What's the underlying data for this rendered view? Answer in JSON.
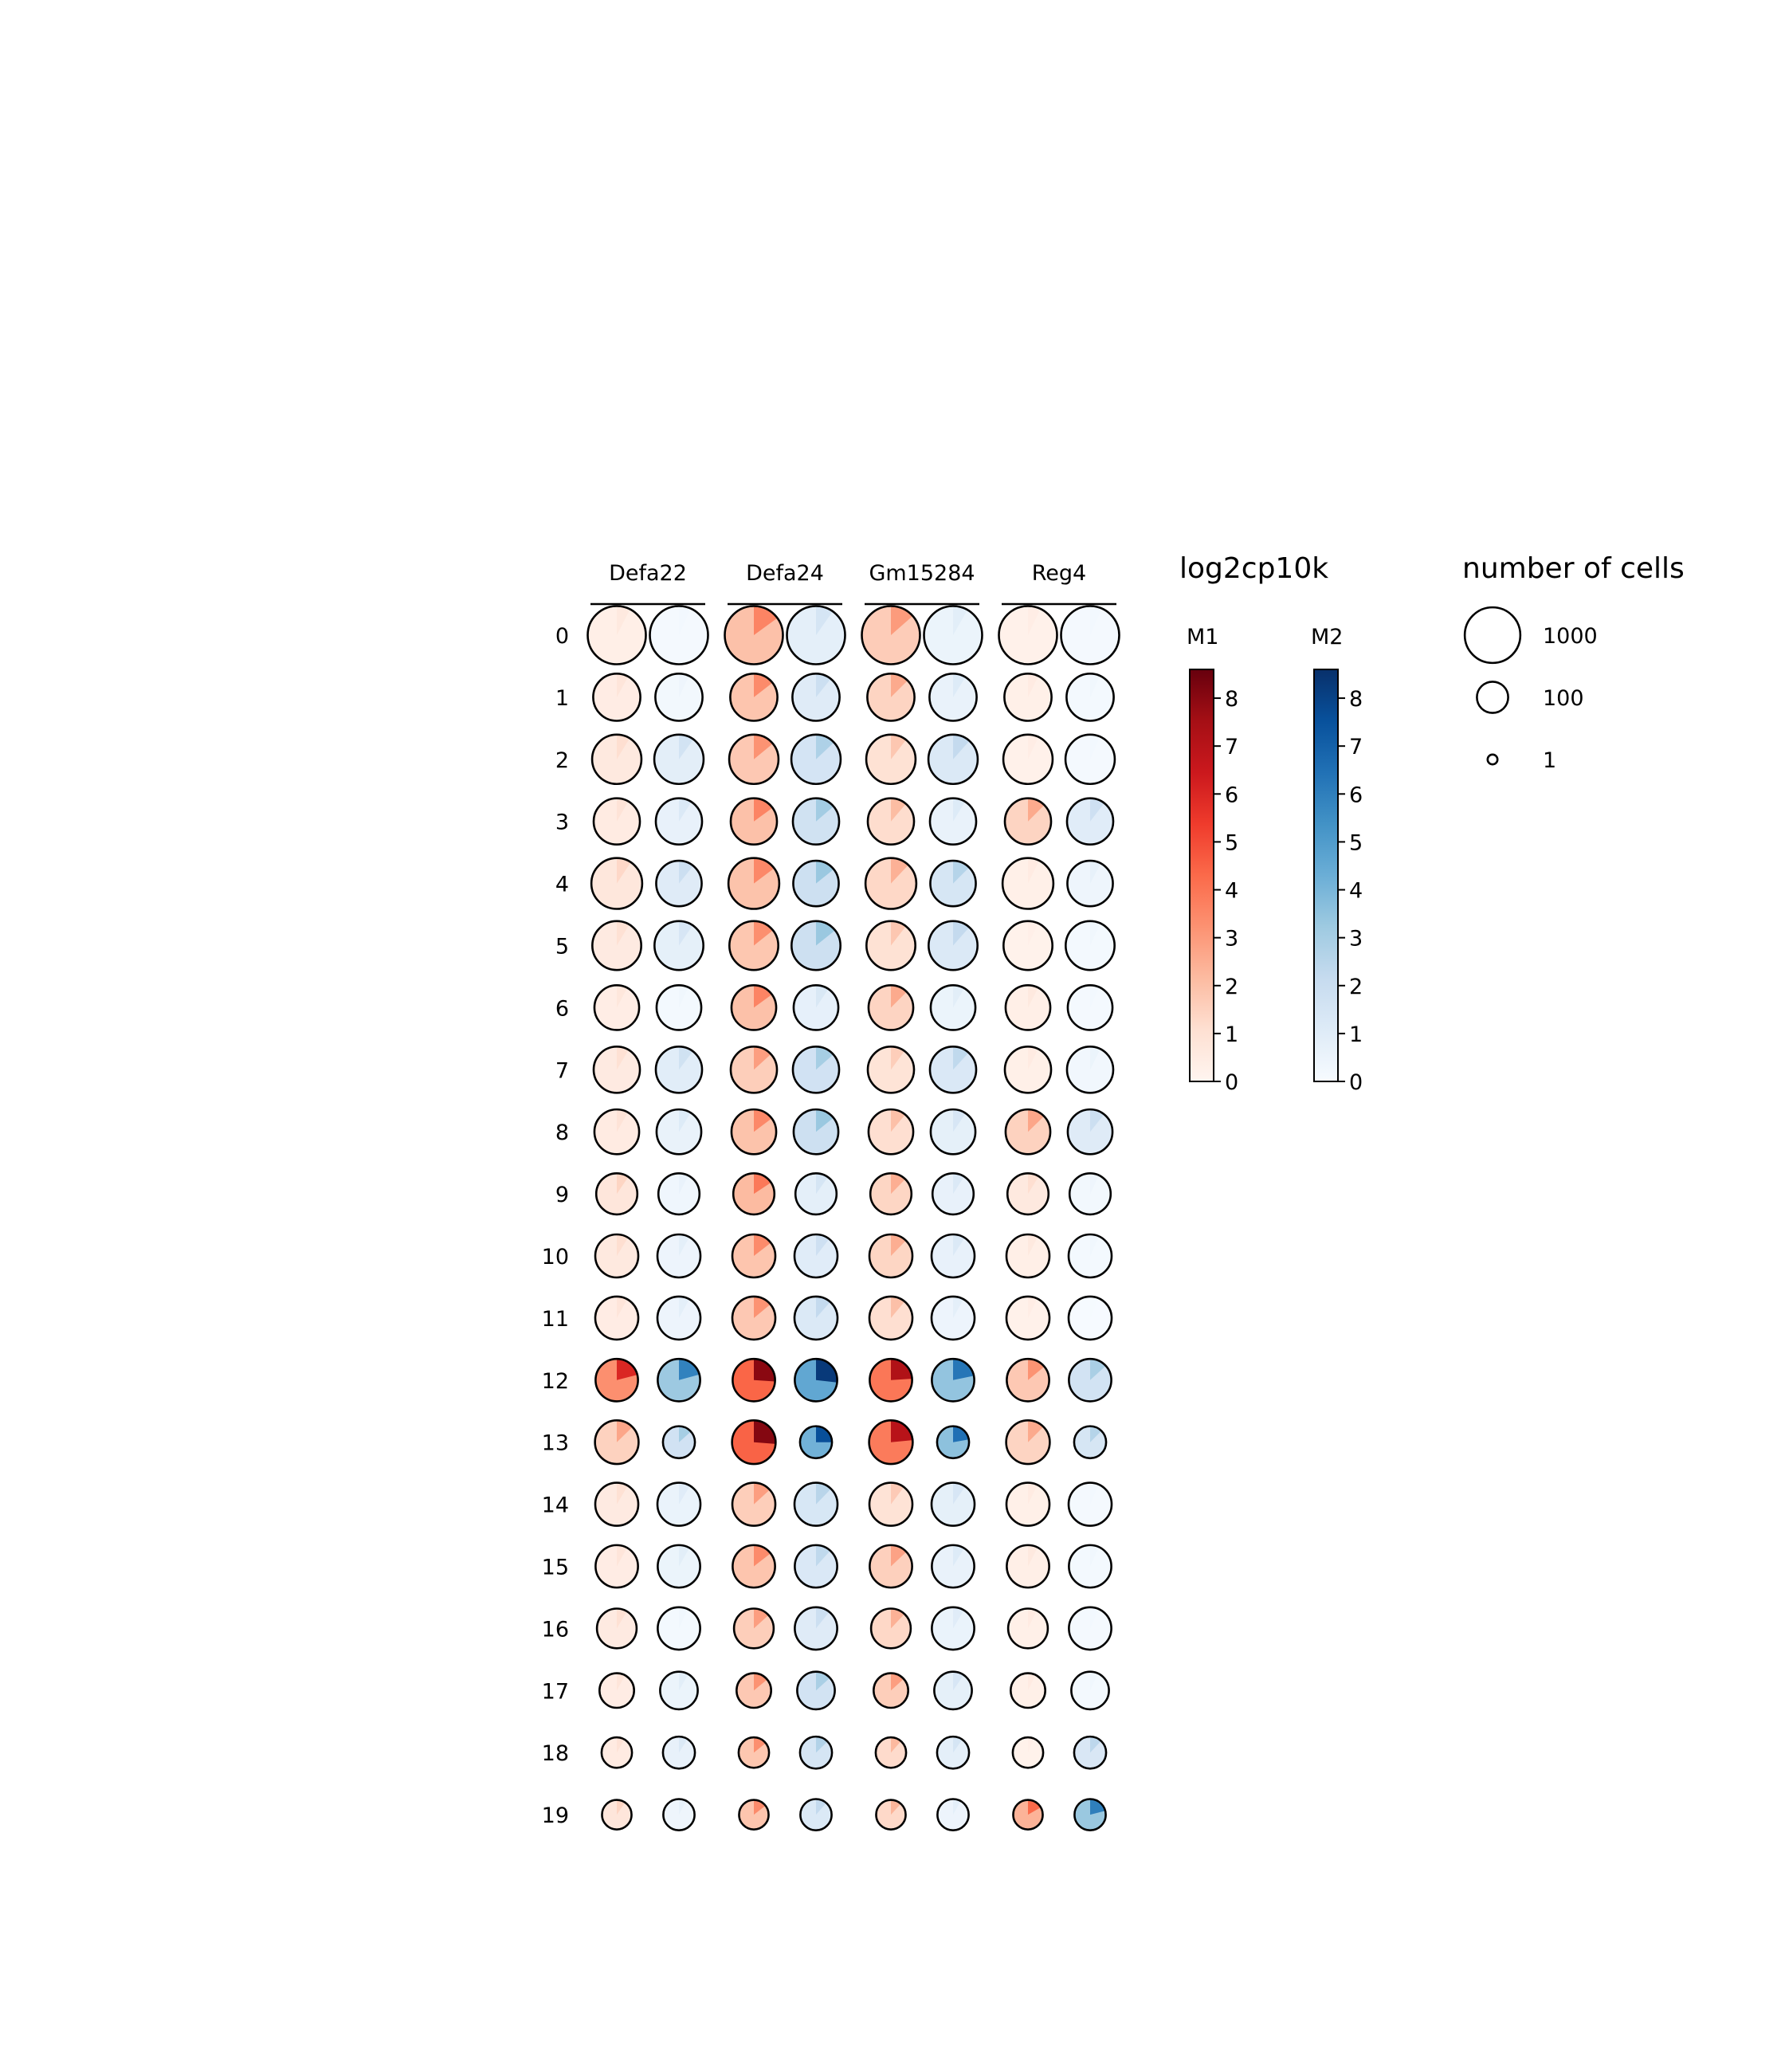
{
  "colors": {
    "M1": [
      "#fff5f0",
      "#fee0d2",
      "#fcbba1",
      "#fc9272",
      "#fb6a4a",
      "#ef3b2c",
      "#cb181d",
      "#a50f15",
      "#67000d"
    ],
    "M2": [
      "#f7fbff",
      "#deebf7",
      "#c6dbef",
      "#9ecae1",
      "#6baed6",
      "#4292c6",
      "#2171b5",
      "#08519c",
      "#08306b"
    ],
    "outline": "#000000"
  },
  "legend": {
    "color_title": "log2cp10k",
    "size_title": "number of cells",
    "size_entries": [
      {
        "label": "1000",
        "cells": 1000
      },
      {
        "label": "100",
        "cells": 100
      },
      {
        "label": "1",
        "cells": 1
      }
    ]
  },
  "chart_data": {
    "type": "scatter",
    "title": "",
    "genes": [
      "Defa22",
      "Defa24",
      "Gm15284",
      "Reg4"
    ],
    "clusters": [
      "0",
      "1",
      "2",
      "3",
      "4",
      "5",
      "6",
      "7",
      "8",
      "9",
      "10",
      "11",
      "12",
      "13",
      "14",
      "15",
      "16",
      "17",
      "18",
      "19"
    ],
    "series": [
      {
        "name": "M1",
        "colorbar_ticks": [
          "0",
          "1",
          "2",
          "3",
          "4",
          "5",
          "6",
          "7",
          "8"
        ],
        "colorbar_range": [
          0,
          8.6
        ]
      },
      {
        "name": "M2",
        "colorbar_ticks": [
          "0",
          "1",
          "2",
          "3",
          "4",
          "5",
          "6",
          "7",
          "8"
        ],
        "colorbar_range": [
          0,
          8.6
        ]
      }
    ],
    "cells": [
      1200,
      520,
      620,
      480,
      700,
      600,
      420,
      480,
      420,
      300,
      360,
      360,
      340,
      380,
      360,
      340,
      260,
      150,
      90,
      80
    ],
    "cells_M2": [
      1200,
      520,
      620,
      480,
      450,
      600,
      420,
      480,
      420,
      300,
      360,
      360,
      340,
      110,
      360,
      340,
      340,
      210,
      110,
      100
    ],
    "expression_M1": [
      [
        0.6,
        3.6,
        3.0,
        0.4
      ],
      [
        0.8,
        3.4,
        2.6,
        0.5
      ],
      [
        1.1,
        3.2,
        1.8,
        0.4
      ],
      [
        0.9,
        3.6,
        2.1,
        2.6
      ],
      [
        1.3,
        3.5,
        2.4,
        0.5
      ],
      [
        1.0,
        3.3,
        1.8,
        0.3
      ],
      [
        0.7,
        3.6,
        2.6,
        0.6
      ],
      [
        1.0,
        2.9,
        1.6,
        0.5
      ],
      [
        0.9,
        3.5,
        2.0,
        2.7
      ],
      [
        1.4,
        3.9,
        2.5,
        1.1
      ],
      [
        1.1,
        3.4,
        2.5,
        0.6
      ],
      [
        0.8,
        3.2,
        2.0,
        0.4
      ],
      [
        6.0,
        8.0,
        7.2,
        3.2
      ],
      [
        2.7,
        8.1,
        7.0,
        2.6
      ],
      [
        1.0,
        2.9,
        1.7,
        0.5
      ],
      [
        0.8,
        3.4,
        2.8,
        0.6
      ],
      [
        1.0,
        2.9,
        2.4,
        0.5
      ],
      [
        0.8,
        3.2,
        2.9,
        0.5
      ],
      [
        0.9,
        3.3,
        2.2,
        0.3
      ],
      [
        1.4,
        3.4,
        2.3,
        4.3
      ]
    ],
    "expression_M2": [
      [
        0.2,
        1.5,
        0.9,
        0.2
      ],
      [
        0.4,
        1.9,
        1.1,
        0.3
      ],
      [
        1.6,
        2.8,
        2.2,
        0.2
      ],
      [
        1.2,
        3.1,
        1.1,
        1.8
      ],
      [
        1.9,
        3.3,
        2.6,
        0.7
      ],
      [
        1.4,
        3.3,
        2.2,
        0.3
      ],
      [
        0.3,
        1.3,
        0.9,
        0.2
      ],
      [
        1.7,
        3.0,
        2.3,
        0.5
      ],
      [
        1.1,
        3.3,
        1.4,
        1.9
      ],
      [
        0.6,
        1.5,
        1.2,
        0.4
      ],
      [
        0.8,
        1.8,
        1.2,
        0.3
      ],
      [
        0.8,
        2.2,
        0.8,
        0.1
      ],
      [
        5.9,
        8.3,
        6.3,
        2.9
      ],
      [
        3.0,
        7.6,
        6.5,
        2.6
      ],
      [
        1.0,
        2.5,
        1.4,
        0.2
      ],
      [
        0.9,
        2.3,
        1.1,
        0.3
      ],
      [
        0.3,
        1.9,
        1.0,
        0.2
      ],
      [
        0.9,
        2.9,
        1.4,
        0.3
      ],
      [
        1.2,
        2.7,
        1.5,
        2.4
      ],
      [
        0.7,
        2.2,
        0.8,
        6.0
      ]
    ]
  }
}
